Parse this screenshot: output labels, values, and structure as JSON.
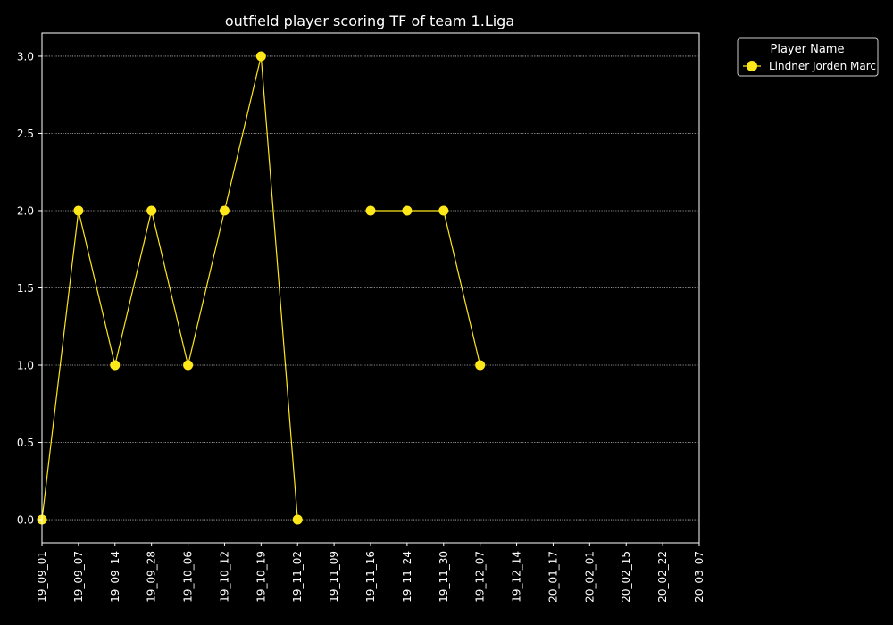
{
  "chart_data": {
    "type": "line",
    "title": "outfield player scoring TF of team 1.Liga",
    "xlabel": "",
    "ylabel": "",
    "categories": [
      "19_09_01",
      "19_09_07",
      "19_09_14",
      "19_09_28",
      "19_10_06",
      "19_10_12",
      "19_10_19",
      "19_11_02",
      "19_11_09",
      "19_11_16",
      "19_11_24",
      "19_11_30",
      "19_12_07",
      "19_12_14",
      "20_01_17",
      "20_02_01",
      "20_02_15",
      "20_02_22",
      "20_03_07"
    ],
    "ylim": [
      -0.15,
      3.15
    ],
    "yticks": [
      "0.0",
      "0.5",
      "1.0",
      "1.5",
      "2.0",
      "2.5",
      "3.0"
    ],
    "ytick_values": [
      0,
      0.5,
      1.0,
      1.5,
      2.0,
      2.5,
      3.0
    ],
    "grid": "horizontal dotted",
    "legend_position": "outside top-right",
    "legend_title": "Player Name",
    "series": [
      {
        "name": "Lindner Jorden Marc",
        "color": "#ffe81a",
        "values": [
          0,
          2,
          1,
          2,
          1,
          2,
          3,
          0,
          null,
          2,
          2,
          2,
          1,
          null,
          null,
          null,
          null,
          null,
          null
        ]
      }
    ]
  }
}
